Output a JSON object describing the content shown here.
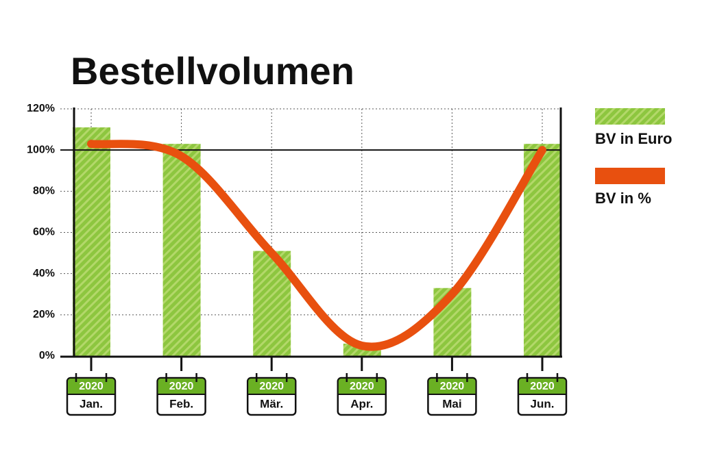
{
  "chart_data": {
    "type": "bar",
    "title": "Bestellvolumen",
    "categories": [
      "Jan.",
      "Feb.",
      "Mär.",
      "Apr.",
      "Mai",
      "Jun."
    ],
    "years": [
      "2020",
      "2020",
      "2020",
      "2020",
      "2020",
      "2020"
    ],
    "series": [
      {
        "name": "BV in Euro",
        "type": "bar",
        "color": "#8dc63f",
        "values": [
          111,
          103,
          51,
          6,
          33,
          103
        ]
      },
      {
        "name": "BV in %",
        "type": "line",
        "color": "#e8500f",
        "values": [
          103,
          97,
          50,
          5,
          30,
          100
        ]
      }
    ],
    "ylim": [
      0,
      120
    ],
    "yticks": [
      {
        "value": 0,
        "label": "0%"
      },
      {
        "value": 20,
        "label": "20%"
      },
      {
        "value": 40,
        "label": "40%"
      },
      {
        "value": 60,
        "label": "60%"
      },
      {
        "value": 80,
        "label": "80%"
      },
      {
        "value": 100,
        "label": "100%"
      },
      {
        "value": 120,
        "label": "120%"
      }
    ],
    "reference_line": 100,
    "grid": true,
    "legend": "right"
  }
}
